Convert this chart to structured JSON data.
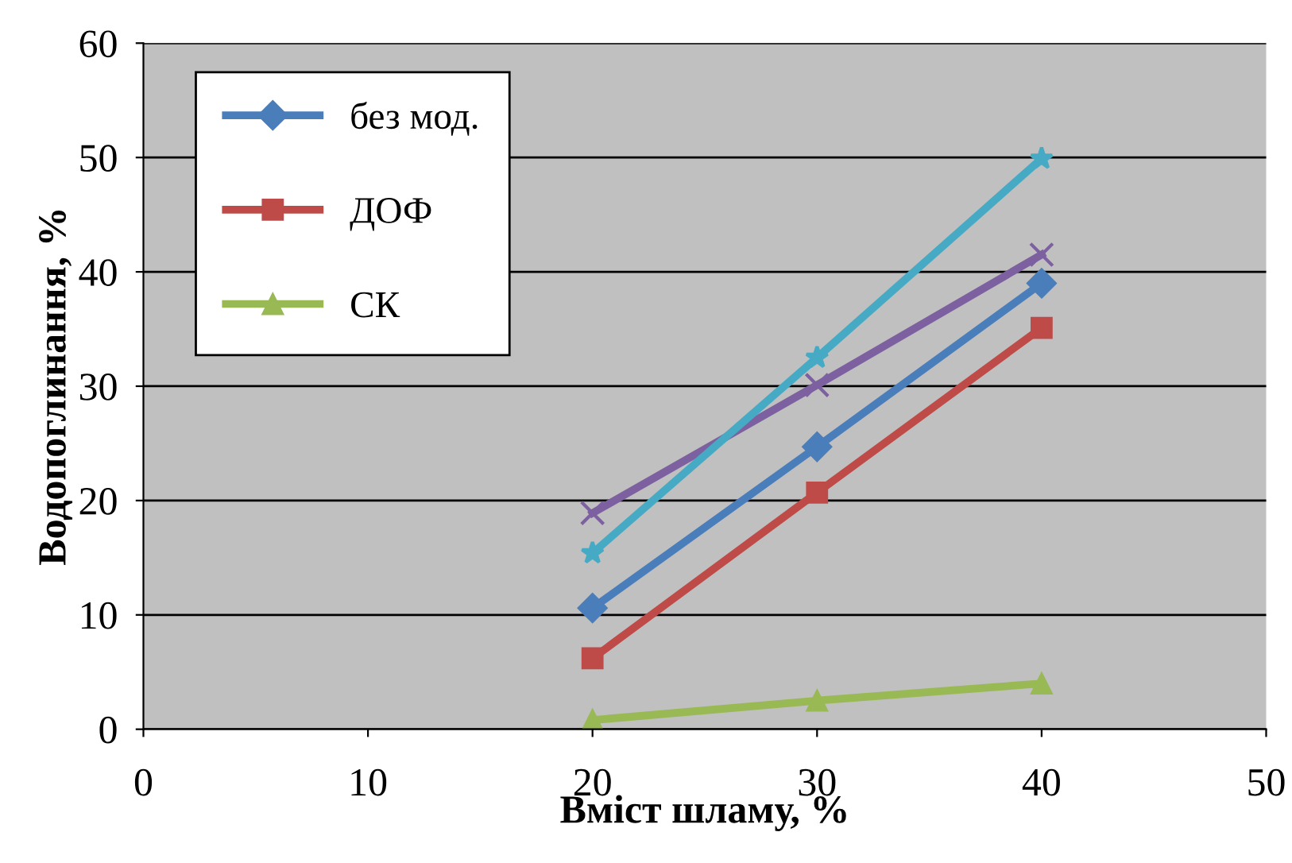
{
  "chart_data": {
    "type": "line",
    "xlabel": "Вміст шламу, %",
    "ylabel": "Водопоглинання, %",
    "x": [
      20,
      30,
      40
    ],
    "series": [
      {
        "name": "без мод.",
        "color": "#4a7ebb",
        "marker": "diamond",
        "values": [
          10.6,
          24.7,
          39.0
        ]
      },
      {
        "name": "ДОФ",
        "color": "#be4b48",
        "marker": "square",
        "values": [
          6.2,
          20.7,
          35.1
        ]
      },
      {
        "name": "СК",
        "color": "#98b954",
        "marker": "triangle",
        "values": [
          0.8,
          2.5,
          4.0
        ]
      },
      {
        "color": "#7d60a0",
        "marker": "cross",
        "values": [
          18.9,
          30.1,
          41.5
        ]
      },
      {
        "color": "#46aac5",
        "marker": "star",
        "values": [
          15.4,
          32.5,
          49.9
        ]
      }
    ],
    "xlim": [
      0,
      50
    ],
    "xticks": [
      0,
      10,
      20,
      30,
      40,
      50
    ],
    "ylim": [
      0,
      60
    ],
    "yticks": [
      0,
      10,
      20,
      30,
      40,
      50,
      60
    ],
    "grid": "y",
    "legend": "top left",
    "line_style": "solid"
  }
}
